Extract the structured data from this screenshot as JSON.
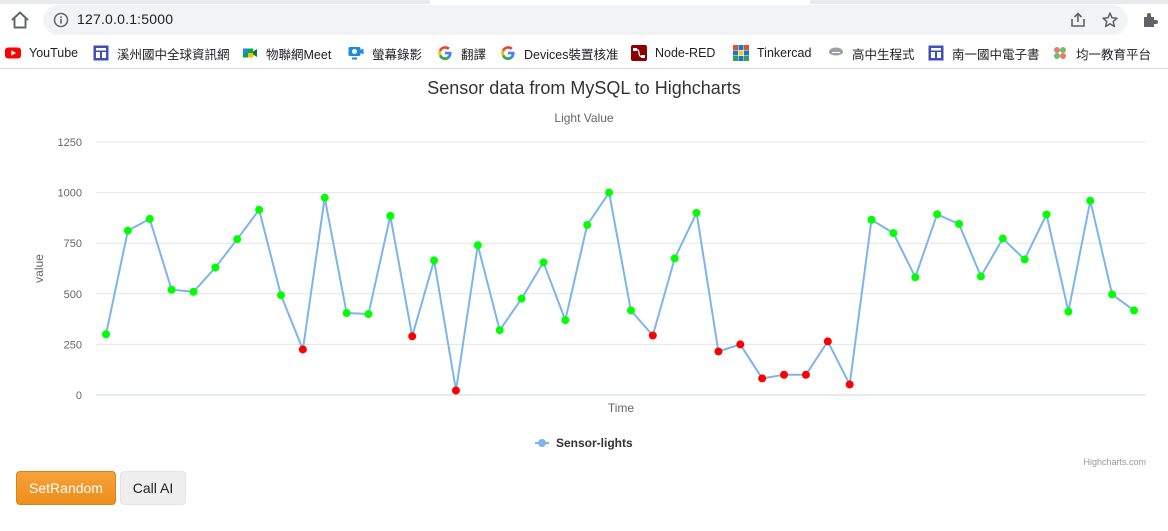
{
  "browser": {
    "url": "127.0.0.1:5000",
    "bookmarks": [
      {
        "label": "YouTube",
        "icon": "youtube-icon"
      },
      {
        "label": "溪州國中全球資訊網",
        "icon": "site-icon"
      },
      {
        "label": "物聯網Meet",
        "icon": "meet-icon"
      },
      {
        "label": "螢幕錄影",
        "icon": "screen-record-icon"
      },
      {
        "label": "翻譯",
        "icon": "google-icon"
      },
      {
        "label": "Devices裝置核准",
        "icon": "google-icon"
      },
      {
        "label": "Node-RED",
        "icon": "node-red-icon"
      },
      {
        "label": "Tinkercad",
        "icon": "tinkercad-icon"
      },
      {
        "label": "高中生程式",
        "icon": "cloud-icon"
      },
      {
        "label": "南一國中電子書",
        "icon": "site-icon"
      },
      {
        "label": "均一教育平台",
        "icon": "junyi-icon"
      }
    ]
  },
  "chart_data": {
    "type": "line",
    "title": "Sensor data from MySQL to Highcharts",
    "subtitle": "Light Value",
    "xlabel": "Time",
    "ylabel": "value",
    "ylim": [
      0,
      1250
    ],
    "y_ticks": [
      "0",
      "250",
      "500",
      "750",
      "1000",
      "1250"
    ],
    "grid": true,
    "legend_position": "bottom-center",
    "credits": "Highcharts.com",
    "series": [
      {
        "name": "Sensor-lights",
        "color": "#7cb5ec",
        "values": [
          300,
          812,
          870,
          520,
          510,
          630,
          770,
          915,
          493,
          225,
          975,
          405,
          400,
          885,
          290,
          665,
          22,
          740,
          320,
          476,
          655,
          370,
          840,
          1000,
          418,
          294,
          675,
          900,
          215,
          250,
          82,
          100,
          100,
          265,
          52,
          866,
          800,
          582,
          893,
          845,
          586,
          773,
          670,
          892,
          412,
          960,
          497,
          418
        ]
      }
    ],
    "marker_colors": {
      "high": "#00ff00",
      "low": "#ff0000"
    },
    "low_threshold": 300
  },
  "buttons": {
    "set_random": "SetRandom",
    "call_ai": "Call AI"
  }
}
